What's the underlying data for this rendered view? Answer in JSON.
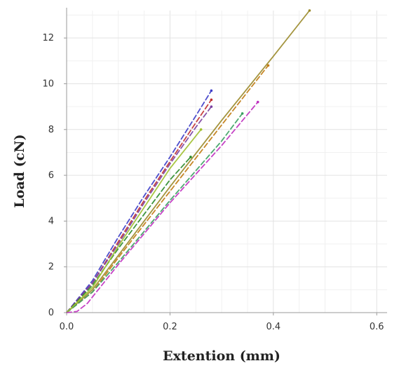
{
  "chart_data": {
    "type": "line",
    "title": "",
    "xlabel": "Extention (mm)",
    "ylabel": "Load (cN)",
    "xlim": [
      0,
      0.62
    ],
    "ylim": [
      0,
      13.2
    ],
    "x_ticks": [
      "0.0",
      "0.2",
      "0.4",
      "0.6"
    ],
    "y_ticks": [
      "0",
      "2",
      "4",
      "6",
      "8",
      "10",
      "12"
    ],
    "grid": true,
    "legend": "none",
    "series": [
      {
        "color": "#3b3bc8",
        "dashed": true,
        "points": [
          [
            0,
            0
          ],
          [
            0.05,
            1.4
          ],
          [
            0.1,
            3.3
          ],
          [
            0.15,
            5.1
          ],
          [
            0.2,
            6.8
          ],
          [
            0.25,
            8.6
          ],
          [
            0.28,
            9.7
          ]
        ]
      },
      {
        "color": "#c03030",
        "dashed": true,
        "points": [
          [
            0,
            0
          ],
          [
            0.05,
            1.3
          ],
          [
            0.1,
            3.1
          ],
          [
            0.15,
            4.9
          ],
          [
            0.2,
            6.6
          ],
          [
            0.25,
            8.3
          ],
          [
            0.28,
            9.3
          ]
        ]
      },
      {
        "color": "#7a3fa0",
        "dashed": true,
        "points": [
          [
            0,
            0
          ],
          [
            0.05,
            1.3
          ],
          [
            0.1,
            3.0
          ],
          [
            0.15,
            4.8
          ],
          [
            0.2,
            6.5
          ],
          [
            0.25,
            8.1
          ],
          [
            0.28,
            9.0
          ]
        ]
      },
      {
        "color": "#9a8a2a",
        "dashed": false,
        "points": [
          [
            0,
            0
          ],
          [
            0.05,
            1.0
          ],
          [
            0.1,
            2.5
          ],
          [
            0.2,
            5.5
          ],
          [
            0.3,
            8.4
          ],
          [
            0.4,
            11.2
          ],
          [
            0.47,
            13.2
          ]
        ]
      },
      {
        "color": "#c07a10",
        "dashed": true,
        "points": [
          [
            0,
            0
          ],
          [
            0.05,
            0.9
          ],
          [
            0.1,
            2.4
          ],
          [
            0.2,
            5.3
          ],
          [
            0.3,
            8.2
          ],
          [
            0.39,
            10.8
          ]
        ]
      },
      {
        "color": "#2a8a2a",
        "dashed": true,
        "points": [
          [
            0,
            0
          ],
          [
            0.05,
            1.2
          ],
          [
            0.1,
            2.8
          ],
          [
            0.15,
            4.3
          ],
          [
            0.2,
            5.8
          ],
          [
            0.24,
            6.8
          ]
        ]
      },
      {
        "color": "#3aa060",
        "dashed": true,
        "points": [
          [
            0,
            0
          ],
          [
            0.05,
            0.9
          ],
          [
            0.1,
            2.2
          ],
          [
            0.2,
            4.9
          ],
          [
            0.3,
            7.5
          ],
          [
            0.34,
            8.7
          ]
        ]
      },
      {
        "color": "#a0c030",
        "dashed": false,
        "points": [
          [
            0,
            0
          ],
          [
            0.05,
            1.1
          ],
          [
            0.1,
            2.9
          ],
          [
            0.15,
            4.6
          ],
          [
            0.2,
            6.3
          ],
          [
            0.26,
            8.0
          ]
        ]
      },
      {
        "color": "#c030c0",
        "dashed": true,
        "points": [
          [
            0,
            0
          ],
          [
            0.02,
            0.05
          ],
          [
            0.04,
            0.4
          ],
          [
            0.1,
            2.1
          ],
          [
            0.2,
            4.8
          ],
          [
            0.3,
            7.3
          ],
          [
            0.37,
            9.2
          ]
        ]
      }
    ]
  }
}
